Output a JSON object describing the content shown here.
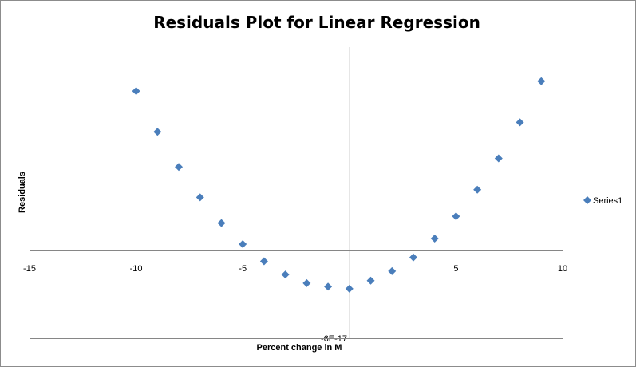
{
  "chart_data": {
    "type": "scatter",
    "title": "Residuals Plot for Linear Regression",
    "xlabel": "Percent change in M",
    "ylabel": "Residuals",
    "xlim": [
      -15,
      10
    ],
    "x_ticks": [
      "-15",
      "-10",
      "-5",
      "5",
      "10"
    ],
    "x_tick_values": [
      -15,
      -10,
      -5,
      5,
      10
    ],
    "y_tick_label": "-6E-17",
    "grid": false,
    "legend_position": "right",
    "marker": "diamond",
    "colors": {
      "series": "#4a7ebb",
      "axis": "#868686",
      "border": "#8c8c8c"
    },
    "series": [
      {
        "name": "Series1",
        "x": [
          -10,
          -9,
          -8,
          -7,
          -6,
          -5,
          -4,
          -3,
          -2,
          -1,
          0,
          1,
          2,
          3,
          4,
          5,
          6,
          7,
          8,
          9
        ],
        "y": [
          1.85,
          1.375,
          0.965,
          0.61,
          0.31,
          0.065,
          -0.135,
          -0.29,
          -0.39,
          -0.43,
          -0.455,
          -0.36,
          -0.25,
          -0.09,
          0.13,
          0.39,
          0.7,
          1.065,
          1.485,
          1.965
        ]
      }
    ]
  }
}
